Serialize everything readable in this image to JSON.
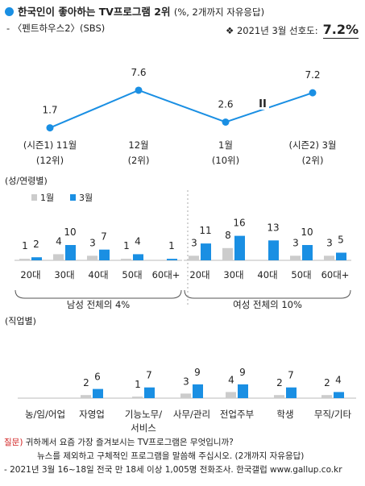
{
  "header": {
    "title": "한국인이 좋아하는 TV프로그램 2위",
    "title_note": "(%, 2개까지 자유응답)",
    "subtitle": "- 〈펜트하우스2〉(SBS)",
    "pref_label": "❖ 2021년 3월 선호도:",
    "pref_value": "7.2%"
  },
  "chart_data": [
    {
      "type": "line",
      "categories": [
        "(시즌1) 11월",
        "12월",
        "1월",
        "(시즌2) 3월"
      ],
      "ranks": [
        "(12위)",
        "(2위)",
        "(10위)",
        "(2위)"
      ],
      "values": [
        1.7,
        7.6,
        2.6,
        7.2
      ],
      "break_marker": "II",
      "ylim": [
        0,
        9
      ],
      "color": "#1a8fe3"
    },
    {
      "type": "bar",
      "section_label": "(성/연령별)",
      "legend": [
        "1월",
        "3월"
      ],
      "series_colors": [
        "#cccccc",
        "#1a8fe3"
      ],
      "groups": [
        {
          "label": "남성 전체의 4%",
          "categories": [
            "20대",
            "30대",
            "40대",
            "50대",
            "60대+"
          ],
          "series": [
            {
              "name": "1월",
              "values": [
                1,
                4,
                3,
                1,
                0
              ]
            },
            {
              "name": "3월",
              "values": [
                2,
                10,
                7,
                4,
                1
              ]
            }
          ],
          "value_labels": [
            [
              "1",
              "4",
              "3",
              "1",
              ""
            ],
            [
              "2",
              "10",
              "7",
              "4",
              "1"
            ]
          ]
        },
        {
          "label": "여성 전체의 10%",
          "categories": [
            "20대",
            "30대",
            "40대",
            "50대",
            "60대+"
          ],
          "series": [
            {
              "name": "1월",
              "values": [
                3,
                8,
                0,
                3,
                3
              ]
            },
            {
              "name": "3월",
              "values": [
                11,
                16,
                13,
                10,
                5
              ]
            }
          ],
          "value_labels": [
            [
              "3",
              "8",
              "",
              "3",
              "3"
            ],
            [
              "11",
              "16",
              "13",
              "10",
              "5"
            ]
          ]
        }
      ]
    },
    {
      "type": "bar",
      "section_label": "(직업별)",
      "categories": [
        "농/임/어업",
        "자영업",
        "기능노무/\n서비스",
        "사무/관리",
        "전업주부",
        "학생",
        "무직/기타"
      ],
      "series": [
        {
          "name": "1월",
          "values": [
            0,
            2,
            1,
            3,
            4,
            2,
            2
          ]
        },
        {
          "name": "3월",
          "values": [
            0,
            6,
            7,
            9,
            9,
            7,
            4
          ]
        }
      ],
      "value_labels": [
        [
          "",
          "2",
          "1",
          "3",
          "4",
          "2",
          "2"
        ],
        [
          "",
          "6",
          "7",
          "9",
          "9",
          "7",
          "4"
        ]
      ]
    }
  ],
  "footer": {
    "question_label": "질문)",
    "question_line1": "귀하께서 요즘 가장 즐겨보시는 TV프로그램은 무엇입니까?",
    "question_line2": "뉴스를 제외하고 구체적인 프로그램을 말씀해 주십시오. (2개까지 자유응답)",
    "source": "- 2021년 3월 16~18일 전국 만 18세 이상 1,005명 전화조사. 한국갤럽 www.gallup.co.kr"
  }
}
